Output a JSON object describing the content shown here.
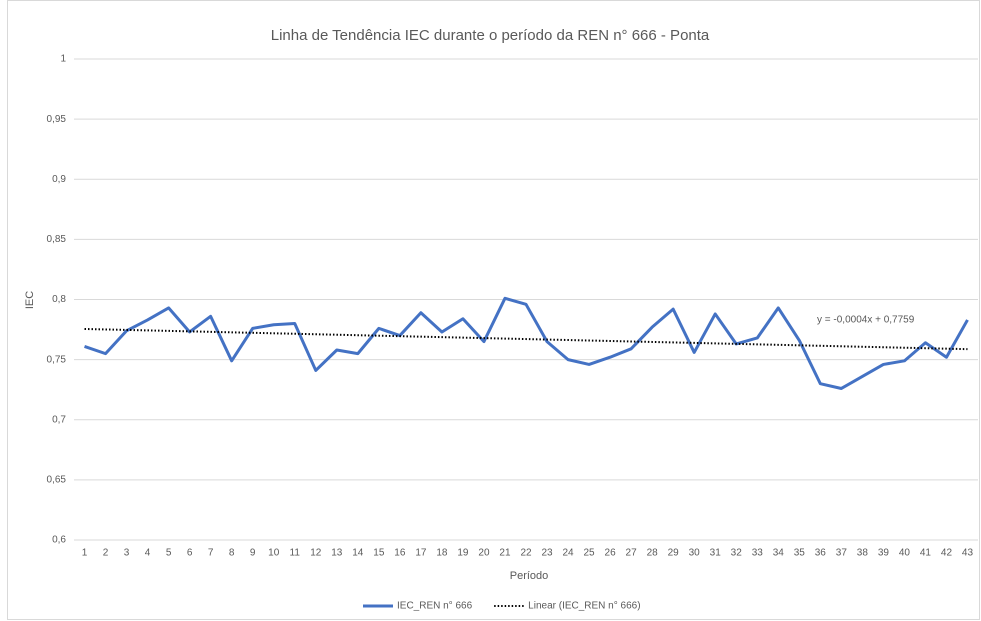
{
  "chart_data": {
    "type": "line",
    "title": "Linha de Tendência IEC durante o período da REN n° 666 - Ponta",
    "x_label": "Período",
    "y_label": "IEC",
    "annotation": "y = -0,0004x + 0,7759",
    "categories": [
      "1",
      "2",
      "3",
      "4",
      "5",
      "6",
      "7",
      "8",
      "9",
      "10",
      "11",
      "12",
      "13",
      "14",
      "15",
      "16",
      "17",
      "18",
      "19",
      "20",
      "21",
      "22",
      "23",
      "24",
      "25",
      "26",
      "27",
      "28",
      "29",
      "30",
      "31",
      "32",
      "33",
      "34",
      "35",
      "36",
      "37",
      "38",
      "39",
      "40",
      "41",
      "42",
      "43"
    ],
    "series": [
      {
        "name": "IEC_REN n° 666",
        "color": "#4472c4",
        "dash": false,
        "values": [
          0.761,
          0.755,
          0.774,
          0.783,
          0.793,
          0.773,
          0.786,
          0.749,
          0.776,
          0.779,
          0.78,
          0.741,
          0.758,
          0.755,
          0.776,
          0.77,
          0.789,
          0.773,
          0.784,
          0.765,
          0.801,
          0.796,
          0.765,
          0.75,
          0.746,
          0.752,
          0.759,
          0.777,
          0.792,
          0.756,
          0.788,
          0.763,
          0.768,
          0.793,
          0.766,
          0.73,
          0.726,
          0.736,
          0.746,
          0.749,
          0.764,
          0.752,
          0.783
        ]
      },
      {
        "name": "Linear (IEC_REN n° 666)",
        "color": "#000000",
        "dash": true,
        "values": [
          0.7755,
          0.7751,
          0.7747,
          0.7743,
          0.7739,
          0.7735,
          0.7731,
          0.7727,
          0.7723,
          0.7719,
          0.7715,
          0.7711,
          0.7707,
          0.7703,
          0.7699,
          0.7695,
          0.7691,
          0.7687,
          0.7683,
          0.7679,
          0.7675,
          0.7671,
          0.7667,
          0.7663,
          0.7659,
          0.7655,
          0.7651,
          0.7647,
          0.7643,
          0.7639,
          0.7635,
          0.7631,
          0.7627,
          0.7623,
          0.7619,
          0.7615,
          0.7611,
          0.7607,
          0.7603,
          0.7599,
          0.7595,
          0.7591,
          0.7587
        ]
      }
    ],
    "ylim": [
      0.6,
      1
    ],
    "yticks": [
      {
        "value": 0.6,
        "label": "0,6"
      },
      {
        "value": 0.65,
        "label": "0,65"
      },
      {
        "value": 0.7,
        "label": "0,7"
      },
      {
        "value": 0.75,
        "label": "0,75"
      },
      {
        "value": 0.8,
        "label": "0,8"
      },
      {
        "value": 0.85,
        "label": "0,85"
      },
      {
        "value": 0.9,
        "label": "0,9"
      },
      {
        "value": 0.95,
        "label": "0,95"
      },
      {
        "value": 1,
        "label": "1"
      }
    ],
    "grid": true,
    "legend": "bottom"
  }
}
